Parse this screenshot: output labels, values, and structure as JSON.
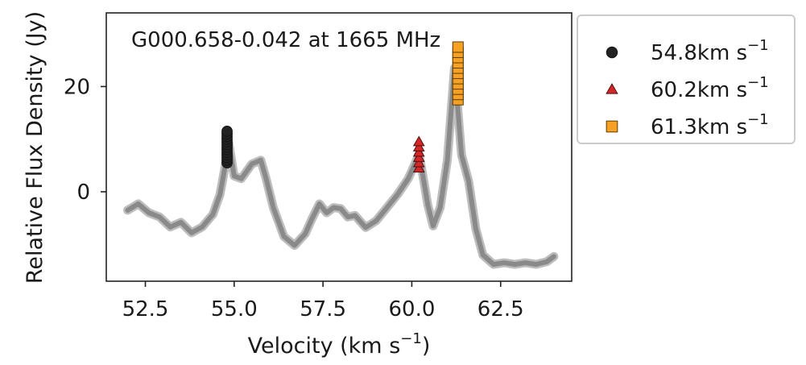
{
  "chart_data": {
    "type": "scatter",
    "annotation": "G000.658-0.042 at 1665 MHz",
    "xlabel": "Velocity (km s",
    "xlabel_sup": "−1",
    "xlabel_close": ")",
    "ylabel": "Relative Flux Density (Jy)",
    "xlim": [
      51.4,
      64.5
    ],
    "ylim": [
      -17,
      34
    ],
    "xticks": [
      52.5,
      55.0,
      57.5,
      60.0,
      62.5
    ],
    "xtick_labels": [
      "52.5",
      "55.0",
      "57.5",
      "60.0",
      "62.5"
    ],
    "yticks": [
      0,
      20
    ],
    "ytick_labels": [
      "0",
      "20"
    ],
    "legend_position": "outside-right",
    "spectrum": {
      "color": "#8a8a8a",
      "x": [
        52.0,
        52.3,
        52.6,
        52.9,
        53.2,
        53.5,
        53.8,
        54.1,
        54.4,
        54.6,
        54.75,
        54.85,
        55.0,
        55.2,
        55.5,
        55.75,
        55.9,
        56.1,
        56.4,
        56.7,
        57.0,
        57.2,
        57.4,
        57.6,
        57.8,
        58.0,
        58.2,
        58.4,
        58.7,
        59.0,
        59.3,
        59.6,
        59.9,
        60.1,
        60.2,
        60.3,
        60.45,
        60.6,
        60.8,
        61.0,
        61.2,
        61.4,
        61.6,
        61.8,
        62.0,
        62.3,
        62.6,
        62.9,
        63.2,
        63.5,
        63.8,
        64.0
      ],
      "y": [
        -3.5,
        -2.3,
        -4.0,
        -4.8,
        -6.7,
        -5.8,
        -7.8,
        -6.7,
        -4.3,
        -0.5,
        5.0,
        9.2,
        3.0,
        2.5,
        5.3,
        6.0,
        2.5,
        -3.0,
        -8.5,
        -10.2,
        -8.0,
        -5.0,
        -2.3,
        -4.0,
        -3.0,
        -3.2,
        -4.8,
        -4.5,
        -6.8,
        -5.5,
        -3.0,
        -0.5,
        2.5,
        5.5,
        7.2,
        3.5,
        -2.5,
        -6.5,
        -3.0,
        6.0,
        23.5,
        7.0,
        2.0,
        -7.0,
        -12.0,
        -13.8,
        -13.5,
        -13.8,
        -13.5,
        -13.8,
        -13.3,
        -12.3
      ]
    },
    "series": [
      {
        "name": "54.8km s",
        "name_sup": "−1",
        "marker": "circle",
        "color": "#222222",
        "x": 54.8,
        "values": [
          5.5,
          6.0,
          6.5,
          7.0,
          7.5,
          8.0,
          8.5,
          9.0,
          9.5,
          10.0,
          10.5,
          11.0,
          11.5
        ]
      },
      {
        "name": "60.2km s",
        "name_sup": "−1",
        "marker": "triangle",
        "color": "#d62728",
        "x": 60.2,
        "values": [
          4.5,
          5.5,
          6.5,
          7.5,
          8.5,
          9.5
        ]
      },
      {
        "name": "61.3km s",
        "name_sup": "−1",
        "marker": "square",
        "color": "#f7a124",
        "x": 61.3,
        "values": [
          17.5,
          18.5,
          19.5,
          20.5,
          21.5,
          22.5,
          23.5,
          24.5,
          25.5,
          26.5,
          27.5
        ]
      }
    ]
  }
}
